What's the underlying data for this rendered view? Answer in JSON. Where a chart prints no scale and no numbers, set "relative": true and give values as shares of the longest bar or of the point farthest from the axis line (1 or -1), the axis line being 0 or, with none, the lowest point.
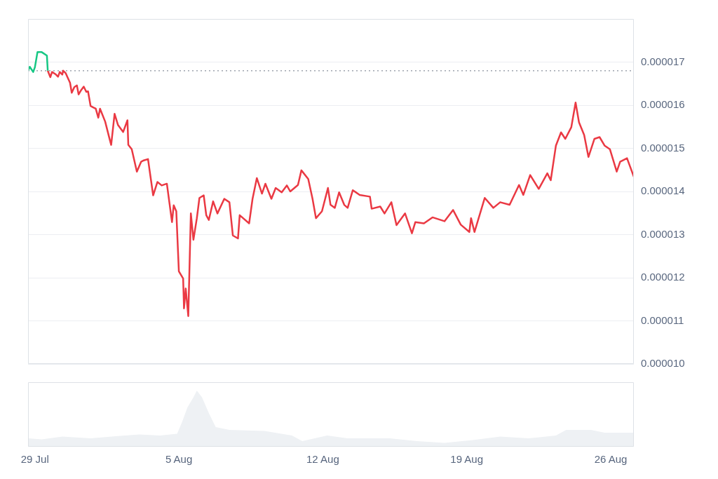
{
  "chart_data": [
    {
      "type": "line",
      "xlim": [
        "--07-28T16:00",
        "--08-27T03:00"
      ],
      "ylim": [
        1e-05,
        1.8e-05
      ],
      "yticks": [
        {
          "value": 1e-05,
          "label": "0.000010"
        },
        {
          "value": 1.1e-05,
          "label": "0.000011"
        },
        {
          "value": 1.2e-05,
          "label": "0.000012"
        },
        {
          "value": 1.3e-05,
          "label": "0.000013"
        },
        {
          "value": 1.4e-05,
          "label": "0.000014"
        },
        {
          "value": 1.5e-05,
          "label": "0.000015"
        },
        {
          "value": 1.6e-05,
          "label": "0.000016"
        },
        {
          "value": 1.7e-05,
          "label": "0.000017"
        }
      ],
      "tick_labels": "y",
      "grid": "y",
      "marker": "none",
      "line_style": "solid",
      "ref_lines": [
        {
          "axis": "y",
          "value": 1.68e-05,
          "color": "#8a919e",
          "line_style": "dotted"
        }
      ],
      "series": [
        {
          "color": "#16c784",
          "x": [
            "--07-28T16:00",
            "--07-28T18:00",
            "--07-28T22:00",
            "--07-29T00:00",
            "--07-29T03:00",
            "--07-29T08:00",
            "--07-29T14:00",
            "--07-29T15:00"
          ],
          "values": [
            1.68e-05,
            1.689e-05,
            1.677e-05,
            1.688e-05,
            1.723e-05,
            1.723e-05,
            1.715e-05,
            1.68e-05
          ]
        },
        {
          "color": "#ea3943",
          "x": [
            "--07-29T15:00",
            "--07-29T18:00",
            "--07-29T20:00",
            "--07-30T00:00",
            "--07-30T03:00",
            "--07-30T05:00",
            "--07-30T08:00",
            "--07-30T09:00",
            "--07-30T12:00",
            "--07-30T14:00",
            "--07-30T17:00",
            "--07-30T19:00",
            "--07-30T22:00",
            "--07-31T01:00",
            "--07-31T03:00",
            "--07-31T06:00",
            "--07-31T09:00",
            "--07-31T12:00",
            "--07-31T14:00",
            "--07-31T17:00",
            "--07-31T20:00",
            "--07-31T23:00",
            "--08-01T02:00",
            "--08-01T04:00",
            "--08-01T10:00",
            "--08-01T15:00",
            "--08-01T17:00",
            "--08-01T21:00",
            "--08-02T01:00",
            "--08-02T07:00",
            "--08-02T12:00",
            "--08-02T13:00",
            "--08-02T17:00",
            "--08-02T23:00",
            "--08-03T04:00",
            "--08-03T07:00",
            "--08-03T12:00",
            "--08-03T18:00",
            "--08-03T23:00",
            "--08-04T04:00",
            "--08-04T10:00",
            "--08-04T16:00",
            "--08-04T18:00",
            "--08-04T21:00",
            "--08-05T00:00",
            "--08-05T05:00",
            "--08-05T06:00",
            "--08-05T08:00",
            "--08-05T11:00",
            "--08-05T14:00",
            "--08-05T17:00",
            "--08-05T21:00",
            "--08-06T00:00",
            "--08-06T05:00",
            "--08-06T08:00",
            "--08-06T11:00",
            "--08-06T16:00",
            "--08-06T21:00",
            "--08-07T05:00",
            "--08-07T11:00",
            "--08-07T15:00",
            "--08-07T21:00",
            "--08-07T23:00",
            "--08-08T10:00",
            "--08-08T14:00",
            "--08-08T19:00",
            "--08-09T01:00",
            "--08-09T05:00",
            "--08-09T12:00",
            "--08-09T17:00",
            "--08-10T00:00",
            "--08-10T06:00",
            "--08-10T10:00",
            "--08-10T19:00",
            "--08-10T23:00",
            "--08-11T07:00",
            "--08-11T12:00",
            "--08-11T16:00",
            "--08-11T23:00",
            "--08-12T06:00",
            "--08-12T09:00",
            "--08-12T14:00",
            "--08-12T19:00",
            "--08-13T01:00",
            "--08-13T05:00",
            "--08-13T11:00",
            "--08-13T19:00",
            "--08-14T07:00",
            "--08-14T09:00",
            "--08-14T19:00",
            "--08-15T00:00",
            "--08-15T08:00",
            "--08-15T14:00",
            "--08-16T00:00",
            "--08-16T08:00",
            "--08-16T12:00",
            "--08-16T22:00",
            "--08-17T08:00",
            "--08-17T22:00",
            "--08-18T08:00",
            "--08-18T17:00",
            "--08-19T03:00",
            "--08-19T05:00",
            "--08-19T09:00",
            "--08-19T21:00",
            "--08-20T07:00",
            "--08-20T15:00",
            "--08-21T02:00",
            "--08-21T13:00",
            "--08-21T18:00",
            "--08-22T02:00",
            "--08-22T12:00",
            "--08-22T22:00",
            "--08-23T02:00",
            "--08-23T08:00",
            "--08-23T14:00",
            "--08-23T19:00",
            "--08-24T02:00",
            "--08-24T07:00",
            "--08-24T11:00",
            "--08-24T17:00",
            "--08-24T22:00",
            "--08-25T05:00",
            "--08-25T11:00",
            "--08-25T17:00",
            "--08-25T23:00",
            "--08-26T07:00",
            "--08-26T11:00",
            "--08-26T19:00",
            "--08-27T03:00"
          ],
          "values": [
            1.68e-05,
            1.665e-05,
            1.677e-05,
            1.672e-05,
            1.666e-05,
            1.677e-05,
            1.671e-05,
            1.68e-05,
            1.674e-05,
            1.665e-05,
            1.652e-05,
            1.629e-05,
            1.642e-05,
            1.646e-05,
            1.625e-05,
            1.635e-05,
            1.643e-05,
            1.631e-05,
            1.632e-05,
            1.598e-05,
            1.595e-05,
            1.592e-05,
            1.571e-05,
            1.592e-05,
            1.562e-05,
            1.523e-05,
            1.508e-05,
            1.58e-05,
            1.554e-05,
            1.538e-05,
            1.565e-05,
            1.508e-05,
            1.498e-05,
            1.446e-05,
            1.469e-05,
            1.472e-05,
            1.475e-05,
            1.391e-05,
            1.422e-05,
            1.414e-05,
            1.418e-05,
            1.329e-05,
            1.368e-05,
            1.354e-05,
            1.215e-05,
            1.198e-05,
            1.129e-05,
            1.175e-05,
            1.111e-05,
            1.349e-05,
            1.288e-05,
            1.338e-05,
            1.385e-05,
            1.391e-05,
            1.345e-05,
            1.334e-05,
            1.377e-05,
            1.349e-05,
            1.383e-05,
            1.375e-05,
            1.298e-05,
            1.291e-05,
            1.345e-05,
            1.326e-05,
            1.383e-05,
            1.431e-05,
            1.395e-05,
            1.418e-05,
            1.383e-05,
            1.408e-05,
            1.398e-05,
            1.414e-05,
            1.4e-05,
            1.415e-05,
            1.449e-05,
            1.429e-05,
            1.383e-05,
            1.338e-05,
            1.354e-05,
            1.408e-05,
            1.369e-05,
            1.362e-05,
            1.398e-05,
            1.369e-05,
            1.362e-05,
            1.403e-05,
            1.392e-05,
            1.388e-05,
            1.36e-05,
            1.365e-05,
            1.349e-05,
            1.375e-05,
            1.322e-05,
            1.349e-05,
            1.303e-05,
            1.329e-05,
            1.326e-05,
            1.34e-05,
            1.331e-05,
            1.357e-05,
            1.323e-05,
            1.306e-05,
            1.338e-05,
            1.306e-05,
            1.385e-05,
            1.362e-05,
            1.375e-05,
            1.369e-05,
            1.415e-05,
            1.392e-05,
            1.438e-05,
            1.406e-05,
            1.442e-05,
            1.426e-05,
            1.506e-05,
            1.537e-05,
            1.522e-05,
            1.549e-05,
            1.606e-05,
            1.56e-05,
            1.531e-05,
            1.48e-05,
            1.522e-05,
            1.526e-05,
            1.506e-05,
            1.498e-05,
            1.446e-05,
            1.469e-05,
            1.477e-05,
            1.434e-05
          ]
        }
      ]
    },
    {
      "type": "area",
      "relative": true,
      "xlim": [
        "--07-28T16:00",
        "--08-27T03:00"
      ],
      "xticks": [
        {
          "value": "--07-29",
          "label": "29 Jul"
        },
        {
          "value": "--08-05",
          "label": "5 Aug"
        },
        {
          "value": "--08-12",
          "label": "12 Aug"
        },
        {
          "value": "--08-19",
          "label": "19 Aug"
        },
        {
          "value": "--08-26",
          "label": "26 Aug"
        }
      ],
      "tick_labels": "x",
      "marker": "none",
      "series": [
        {
          "color": "#eef1f4",
          "x": [
            "--07-28T16:00",
            "--07-29T08:00",
            "--07-30T08:00",
            "--07-31T17:00",
            "--08-02T01:00",
            "--08-03T02:00",
            "--08-04T02:00",
            "--08-04T22:00",
            "--08-05T04:00",
            "--08-05T10:00",
            "--08-05T17:00",
            "--08-05T21:00",
            "--08-06T03:00",
            "--08-06T11:00",
            "--08-06T19:00",
            "--08-07T11:00",
            "--08-09T04:00",
            "--08-10T12:00",
            "--08-11T00:00",
            "--08-12T05:00",
            "--08-13T05:00",
            "--08-15T06:00",
            "--08-16T14:00",
            "--08-17T22:00",
            "--08-19T07:00",
            "--08-20T15:00",
            "--08-22T00:00",
            "--08-23T08:00",
            "--08-23T20:00",
            "--08-25T01:00",
            "--08-25T17:00",
            "--08-27T03:00"
          ],
          "values": [
            0.15,
            0.13,
            0.18,
            0.15,
            0.19,
            0.22,
            0.2,
            0.23,
            0.45,
            0.7,
            0.88,
            1,
            0.88,
            0.6,
            0.35,
            0.3,
            0.28,
            0.2,
            0.1,
            0.2,
            0.15,
            0.15,
            0.1,
            0.07,
            0.12,
            0.18,
            0.15,
            0.2,
            0.3,
            0.3,
            0.25,
            0.25
          ]
        }
      ]
    }
  ]
}
